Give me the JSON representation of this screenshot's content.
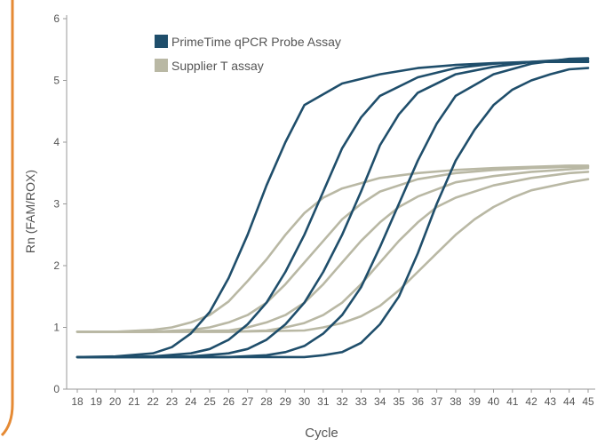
{
  "colors": {
    "frame": "#e58a34",
    "primetime": "#1f4e6b",
    "supplier": "#b9b8a4",
    "axis": "#9a9a9a",
    "text": "#555555"
  },
  "chart_data": {
    "type": "line",
    "ylabel": "Rn (FAM/ROX)",
    "xlabel": "Cycle",
    "xlim": [
      18,
      45
    ],
    "ylim": [
      0,
      6
    ],
    "x_ticks": [
      "18",
      "19",
      "20",
      "21",
      "22",
      "23",
      "24",
      "25",
      "26",
      "27",
      "28",
      "29",
      "30",
      "31",
      "32",
      "33",
      "34",
      "35",
      "36",
      "37",
      "38",
      "39",
      "40",
      "41",
      "42",
      "43",
      "44",
      "45"
    ],
    "y_ticks": [
      "0",
      "1",
      "2",
      "3",
      "4",
      "5",
      "6"
    ],
    "grid": false,
    "legend_position": "top-left",
    "legend": [
      {
        "label": "PrimeTime qPCR Probe Assay",
        "color": "#1f4e6b"
      },
      {
        "label": "Supplier T assay",
        "color": "#b9b8a4"
      }
    ],
    "series": [
      {
        "group": "PrimeTime qPCR Probe Assay",
        "color": "#1f4e6b",
        "x": [
          18,
          20,
          22,
          23,
          24,
          25,
          26,
          27,
          28,
          29,
          30,
          32,
          34,
          36,
          38,
          40,
          42,
          44,
          45
        ],
        "y": [
          0.52,
          0.53,
          0.58,
          0.68,
          0.9,
          1.25,
          1.8,
          2.5,
          3.3,
          4.0,
          4.6,
          4.95,
          5.1,
          5.2,
          5.25,
          5.28,
          5.3,
          5.3,
          5.3
        ]
      },
      {
        "group": "PrimeTime qPCR Probe Assay",
        "color": "#1f4e6b",
        "x": [
          18,
          20,
          22,
          24,
          25,
          26,
          27,
          28,
          29,
          30,
          31,
          32,
          33,
          34,
          36,
          38,
          40,
          42,
          44,
          45
        ],
        "y": [
          0.52,
          0.52,
          0.53,
          0.58,
          0.65,
          0.8,
          1.05,
          1.4,
          1.9,
          2.5,
          3.2,
          3.9,
          4.4,
          4.75,
          5.05,
          5.2,
          5.27,
          5.3,
          5.32,
          5.32
        ]
      },
      {
        "group": "PrimeTime qPCR Probe Assay",
        "color": "#1f4e6b",
        "x": [
          18,
          20,
          22,
          24,
          26,
          27,
          28,
          29,
          30,
          31,
          32,
          33,
          34,
          35,
          36,
          38,
          40,
          42,
          44,
          45
        ],
        "y": [
          0.52,
          0.52,
          0.52,
          0.53,
          0.58,
          0.65,
          0.8,
          1.05,
          1.4,
          1.9,
          2.5,
          3.2,
          3.95,
          4.45,
          4.8,
          5.1,
          5.22,
          5.3,
          5.34,
          5.35
        ]
      },
      {
        "group": "PrimeTime qPCR Probe Assay",
        "color": "#1f4e6b",
        "x": [
          18,
          22,
          26,
          28,
          29,
          30,
          31,
          32,
          33,
          34,
          35,
          36,
          37,
          38,
          40,
          42,
          44,
          45
        ],
        "y": [
          0.52,
          0.52,
          0.52,
          0.55,
          0.6,
          0.7,
          0.9,
          1.2,
          1.65,
          2.3,
          3.0,
          3.7,
          4.3,
          4.75,
          5.1,
          5.27,
          5.35,
          5.36
        ]
      },
      {
        "group": "PrimeTime qPCR Probe Assay",
        "color": "#1f4e6b",
        "x": [
          18,
          22,
          26,
          30,
          31,
          32,
          33,
          34,
          35,
          36,
          37,
          38,
          39,
          40,
          41,
          42,
          43,
          44,
          45
        ],
        "y": [
          0.52,
          0.52,
          0.52,
          0.52,
          0.55,
          0.6,
          0.75,
          1.05,
          1.5,
          2.2,
          3.0,
          3.7,
          4.2,
          4.6,
          4.85,
          5.0,
          5.1,
          5.18,
          5.2
        ]
      },
      {
        "group": "Supplier T assay",
        "color": "#b9b8a4",
        "x": [
          18,
          20,
          22,
          23,
          24,
          25,
          26,
          27,
          28,
          29,
          30,
          31,
          32,
          34,
          36,
          38,
          40,
          42,
          44,
          45
        ],
        "y": [
          0.93,
          0.93,
          0.96,
          1.0,
          1.08,
          1.2,
          1.42,
          1.75,
          2.1,
          2.5,
          2.85,
          3.1,
          3.25,
          3.42,
          3.5,
          3.55,
          3.58,
          3.6,
          3.62,
          3.62
        ]
      },
      {
        "group": "Supplier T assay",
        "color": "#b9b8a4",
        "x": [
          18,
          22,
          24,
          25,
          26,
          27,
          28,
          29,
          30,
          31,
          32,
          33,
          34,
          36,
          38,
          40,
          42,
          44,
          45
        ],
        "y": [
          0.93,
          0.93,
          0.96,
          1.0,
          1.08,
          1.2,
          1.4,
          1.7,
          2.05,
          2.4,
          2.75,
          3.0,
          3.2,
          3.4,
          3.5,
          3.55,
          3.58,
          3.6,
          3.6
        ]
      },
      {
        "group": "Supplier T assay",
        "color": "#b9b8a4",
        "x": [
          18,
          22,
          26,
          27,
          28,
          29,
          30,
          31,
          32,
          33,
          34,
          35,
          36,
          38,
          40,
          42,
          44,
          45
        ],
        "y": [
          0.93,
          0.93,
          0.95,
          1.0,
          1.08,
          1.2,
          1.4,
          1.7,
          2.05,
          2.4,
          2.7,
          2.95,
          3.12,
          3.35,
          3.45,
          3.52,
          3.56,
          3.58
        ]
      },
      {
        "group": "Supplier T assay",
        "color": "#b9b8a4",
        "x": [
          18,
          22,
          26,
          28,
          29,
          30,
          31,
          32,
          33,
          34,
          35,
          36,
          37,
          38,
          40,
          42,
          44,
          45
        ],
        "y": [
          0.93,
          0.93,
          0.93,
          0.95,
          1.0,
          1.07,
          1.2,
          1.4,
          1.7,
          2.05,
          2.4,
          2.7,
          2.95,
          3.1,
          3.3,
          3.42,
          3.5,
          3.52
        ]
      },
      {
        "group": "Supplier T assay",
        "color": "#b9b8a4",
        "x": [
          18,
          22,
          26,
          30,
          31,
          32,
          33,
          34,
          35,
          36,
          37,
          38,
          39,
          40,
          41,
          42,
          44,
          45
        ],
        "y": [
          0.93,
          0.93,
          0.93,
          0.95,
          1.0,
          1.07,
          1.18,
          1.35,
          1.6,
          1.9,
          2.2,
          2.5,
          2.75,
          2.95,
          3.1,
          3.22,
          3.35,
          3.4
        ]
      }
    ]
  }
}
